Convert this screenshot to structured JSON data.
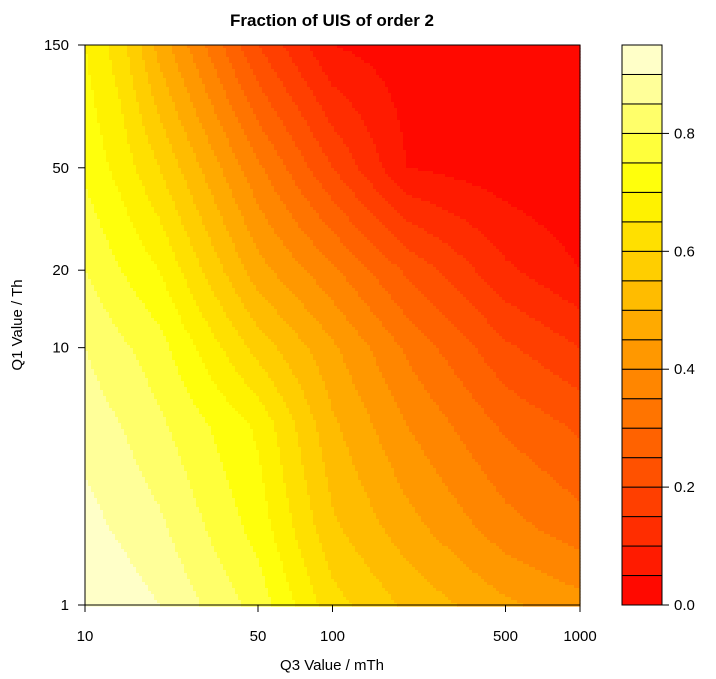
{
  "chart_data": {
    "type": "heatmap",
    "subtype": "filled-contour",
    "title": "Fraction of UIS of order 2",
    "xlabel": "Q3 Value / mTh",
    "ylabel": "Q1 Value / Th",
    "x_scale": "log",
    "y_scale": "log",
    "xlim": [
      10,
      1000
    ],
    "ylim": [
      1,
      150
    ],
    "x_ticks": [
      "10",
      "50",
      "100",
      "500",
      "1000"
    ],
    "y_ticks": [
      "1",
      "10",
      "20",
      "50",
      "150"
    ],
    "x": [
      10,
      14,
      20,
      50,
      100,
      200,
      500,
      1000
    ],
    "y": [
      1,
      2,
      5,
      10,
      20,
      50,
      150
    ],
    "z": [
      [
        0.95,
        0.93,
        0.9,
        0.78,
        0.62,
        0.54,
        0.46,
        0.42
      ],
      [
        0.92,
        0.89,
        0.86,
        0.73,
        0.56,
        0.47,
        0.37,
        0.32
      ],
      [
        0.88,
        0.85,
        0.81,
        0.69,
        0.51,
        0.4,
        0.29,
        0.24
      ],
      [
        0.85,
        0.81,
        0.77,
        0.58,
        0.46,
        0.34,
        0.21,
        0.15
      ],
      [
        0.8,
        0.75,
        0.7,
        0.47,
        0.36,
        0.24,
        0.11,
        0.05
      ],
      [
        0.74,
        0.68,
        0.6,
        0.36,
        0.2,
        0.05,
        0.02,
        0.0
      ],
      [
        0.7,
        0.62,
        0.48,
        0.2,
        0.05,
        0.02,
        0.0,
        0.0
      ]
    ],
    "zlim": [
      0,
      0.95
    ],
    "colorbar": {
      "levels": [
        0,
        0.05,
        0.1,
        0.15,
        0.2,
        0.25,
        0.3,
        0.35,
        0.4,
        0.45,
        0.5,
        0.55,
        0.6,
        0.65,
        0.7,
        0.75,
        0.8,
        0.85,
        0.9,
        0.95
      ],
      "ticks": [
        "0.0",
        "0.2",
        "0.4",
        "0.6",
        "0.8"
      ],
      "tick_values": [
        0,
        0.2,
        0.4,
        0.6,
        0.8
      ],
      "placement": "right"
    },
    "colormap": "heat",
    "color_low": "#ff0000",
    "color_high": "#ffffe0",
    "grid": false
  }
}
